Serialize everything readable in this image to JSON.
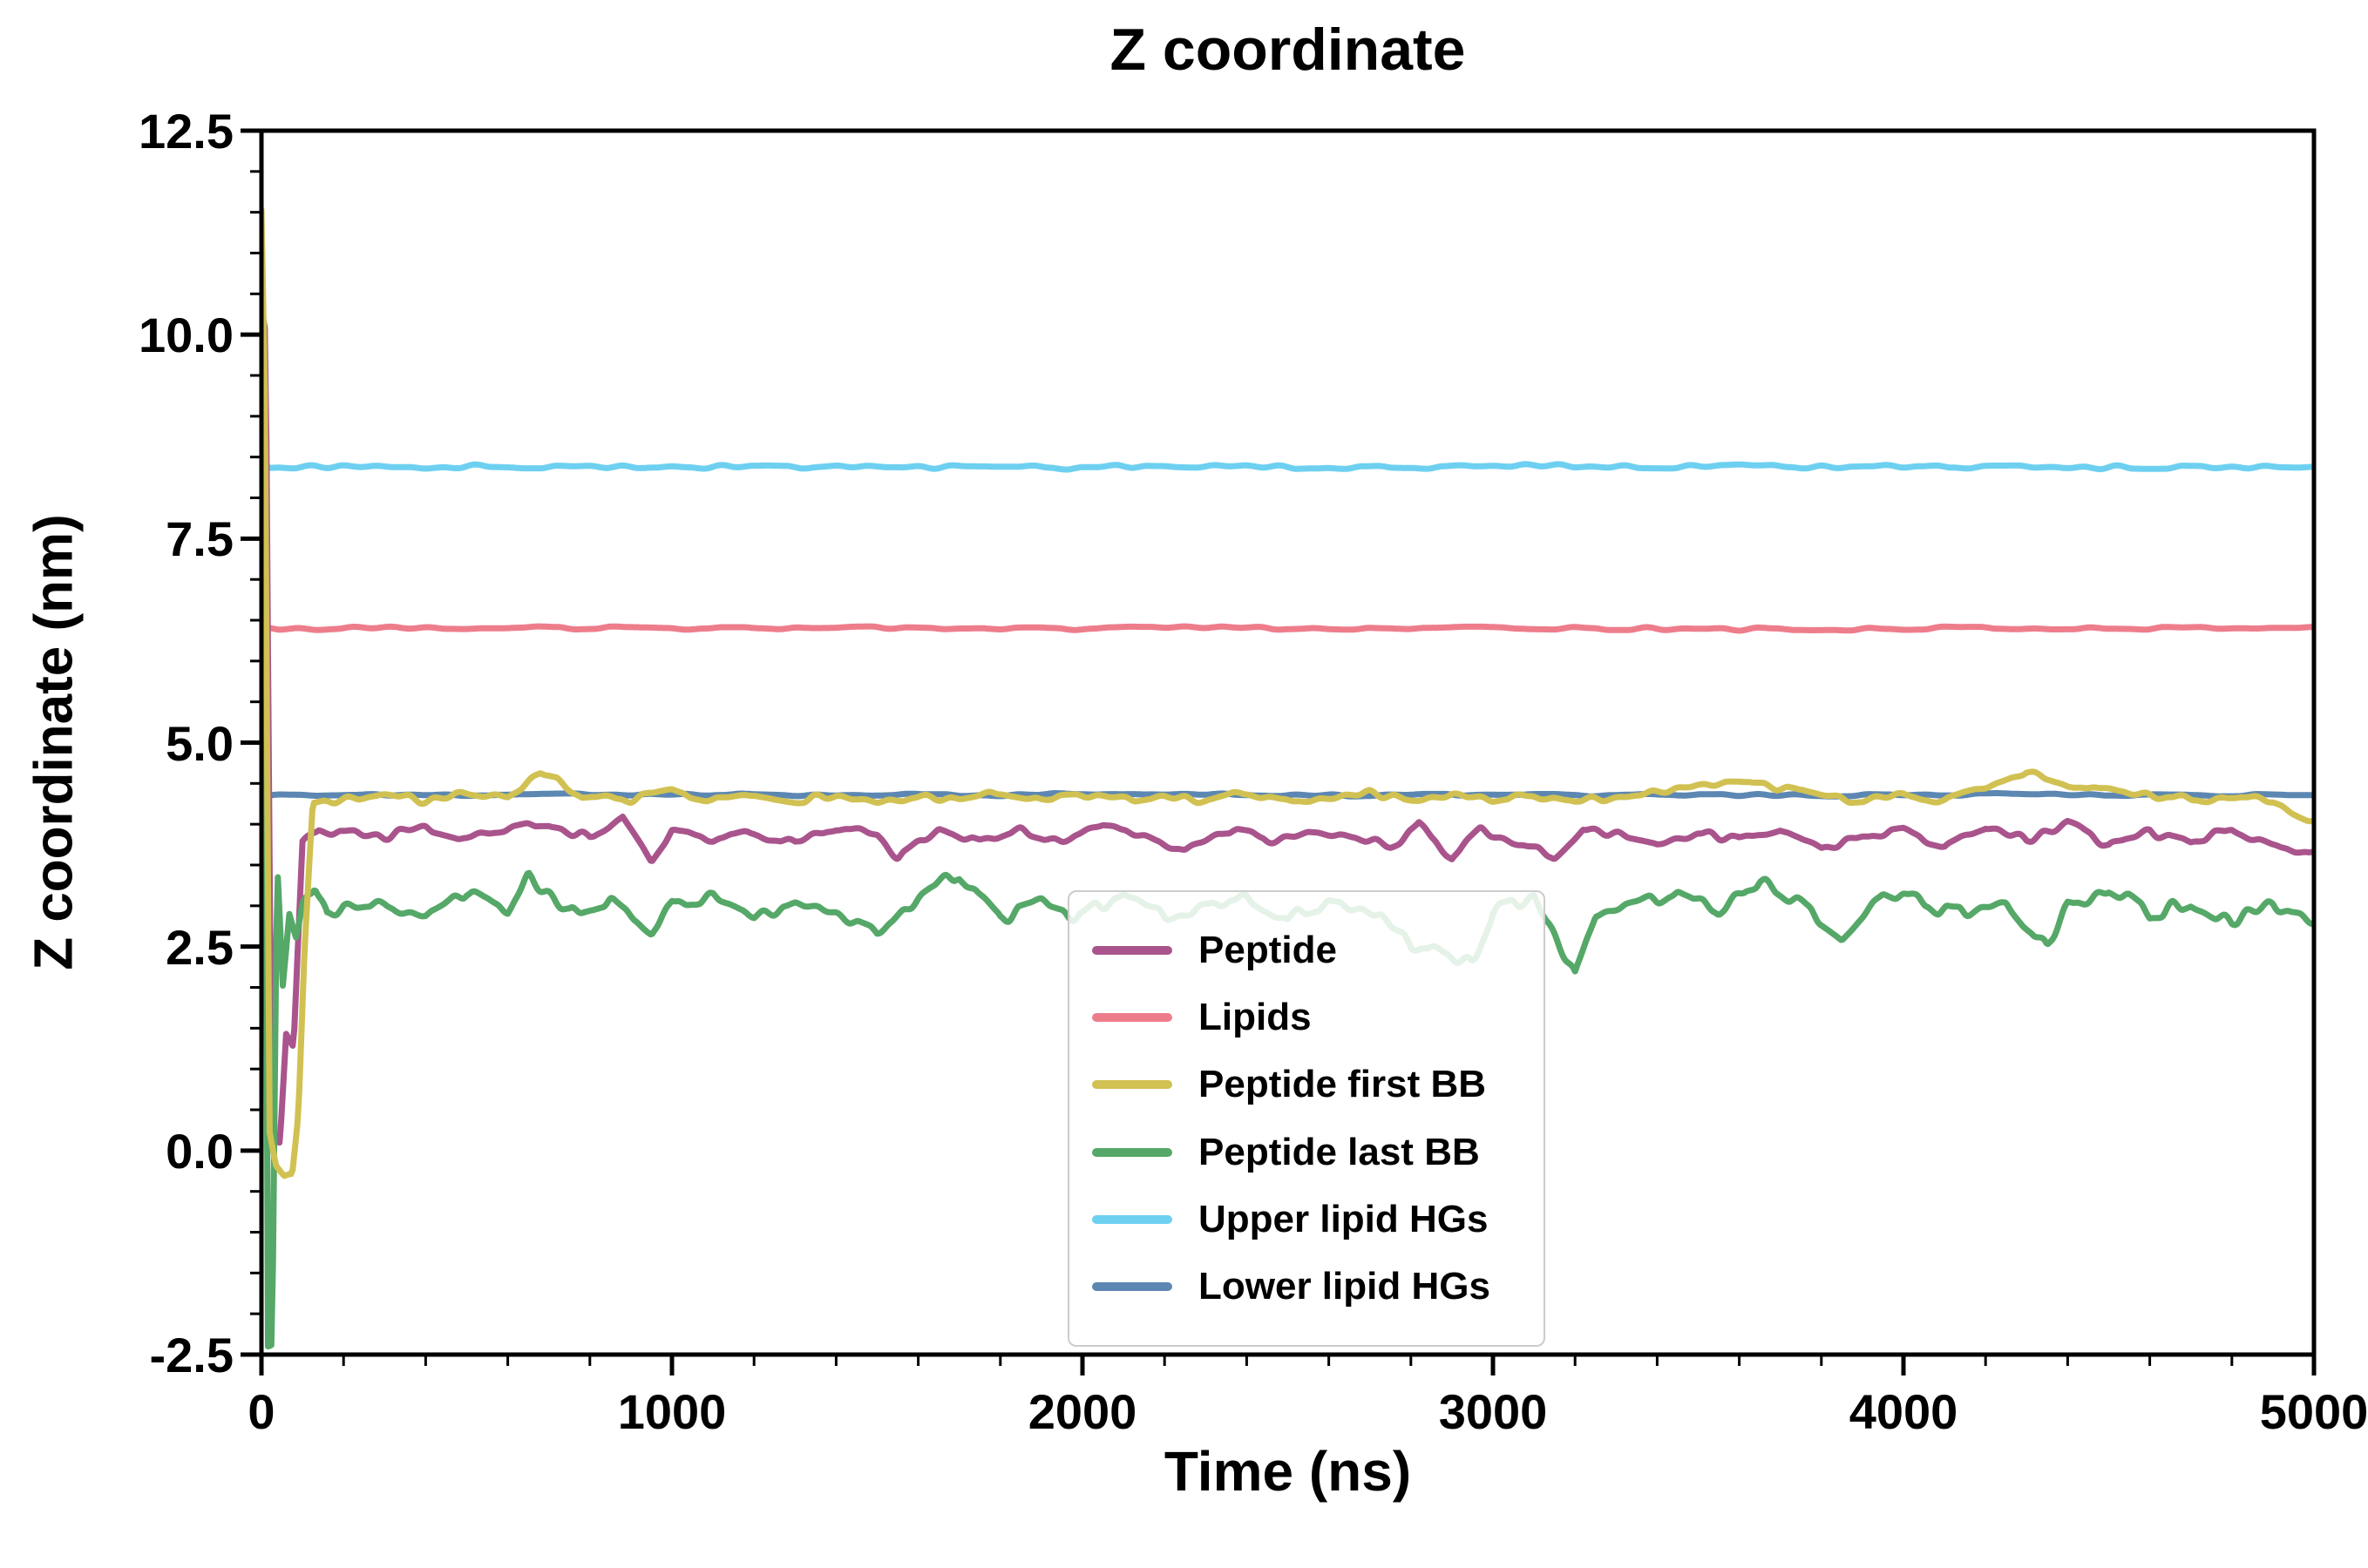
{
  "chart_data": {
    "type": "line",
    "title": "Z coordinate",
    "xlabel": "Time (ns)",
    "ylabel": "Z coordinate (nm)",
    "xlim": [
      0,
      5000
    ],
    "ylim": [
      -2.5,
      12.5
    ],
    "xticks": [
      0,
      1000,
      2000,
      3000,
      4000,
      5000
    ],
    "xtick_labels": [
      "0",
      "1000",
      "2000",
      "3000",
      "4000",
      "5000"
    ],
    "yticks": [
      -2.5,
      0.0,
      2.5,
      5.0,
      7.5,
      10.0,
      12.5
    ],
    "ytick_labels": [
      "-2.5",
      "0.0",
      "2.5",
      "5.0",
      "7.5",
      "10.0",
      "12.5"
    ],
    "x_minor_step": 200,
    "y_minor_step": 0.5,
    "grid": false,
    "legend_position": "inside lower center",
    "axis_color": "#000000",
    "background_color": "#ffffff",
    "draw_order": [
      5,
      4,
      1,
      0,
      3,
      2
    ],
    "series": [
      {
        "name": "Peptide",
        "color": "#a9548c",
        "line_width": 7,
        "noise_amp": 0.07,
        "noise_dx": 28,
        "seed": 11,
        "points": [
          [
            0,
            10.3
          ],
          [
            10,
            10.0
          ],
          [
            25,
            0.1
          ],
          [
            45,
            0.1
          ],
          [
            60,
            1.45
          ],
          [
            78,
            1.3
          ],
          [
            100,
            3.8
          ],
          [
            140,
            3.95
          ],
          [
            200,
            3.9
          ],
          [
            300,
            3.85
          ],
          [
            400,
            3.95
          ],
          [
            500,
            3.8
          ],
          [
            600,
            3.9
          ],
          [
            700,
            4.0
          ],
          [
            800,
            3.85
          ],
          [
            880,
            4.1
          ],
          [
            950,
            3.55
          ],
          [
            1000,
            3.9
          ],
          [
            1100,
            3.8
          ],
          [
            1200,
            3.9
          ],
          [
            1300,
            3.75
          ],
          [
            1400,
            3.95
          ],
          [
            1500,
            3.85
          ],
          [
            1550,
            3.6
          ],
          [
            1650,
            3.95
          ],
          [
            1750,
            3.8
          ],
          [
            1850,
            3.9
          ],
          [
            1950,
            3.8
          ],
          [
            2050,
            3.95
          ],
          [
            2150,
            3.85
          ],
          [
            2250,
            3.7
          ],
          [
            2350,
            3.9
          ],
          [
            2450,
            3.8
          ],
          [
            2550,
            3.95
          ],
          [
            2650,
            3.85
          ],
          [
            2750,
            3.75
          ],
          [
            2820,
            4.0
          ],
          [
            2900,
            3.6
          ],
          [
            2970,
            3.9
          ],
          [
            3050,
            3.8
          ],
          [
            3150,
            3.6
          ],
          [
            3220,
            3.95
          ],
          [
            3300,
            3.85
          ],
          [
            3400,
            3.75
          ],
          [
            3500,
            3.9
          ],
          [
            3600,
            3.8
          ],
          [
            3700,
            3.95
          ],
          [
            3800,
            3.7
          ],
          [
            3900,
            3.85
          ],
          [
            4000,
            3.9
          ],
          [
            4100,
            3.75
          ],
          [
            4200,
            3.95
          ],
          [
            4300,
            3.8
          ],
          [
            4400,
            4.0
          ],
          [
            4500,
            3.7
          ],
          [
            4600,
            3.9
          ],
          [
            4700,
            3.8
          ],
          [
            4800,
            3.95
          ],
          [
            4900,
            3.75
          ],
          [
            5000,
            3.65
          ]
        ]
      },
      {
        "name": "Lipids",
        "color": "#ee7d8b",
        "line_width": 7,
        "noise_amp": 0.028,
        "noise_dx": 45,
        "seed": 22,
        "points": [
          [
            0,
            6.4
          ],
          [
            5000,
            6.4
          ]
        ]
      },
      {
        "name": "Peptide first BB",
        "color": "#d0c152",
        "line_width": 7,
        "noise_amp": 0.06,
        "noise_dx": 30,
        "seed": 33,
        "points": [
          [
            0,
            11.5
          ],
          [
            8,
            9.3
          ],
          [
            20,
            0.2
          ],
          [
            35,
            -0.2
          ],
          [
            55,
            -0.3
          ],
          [
            75,
            -0.25
          ],
          [
            90,
            0.5
          ],
          [
            105,
            2.5
          ],
          [
            125,
            4.25
          ],
          [
            200,
            4.3
          ],
          [
            300,
            4.35
          ],
          [
            400,
            4.3
          ],
          [
            500,
            4.35
          ],
          [
            600,
            4.32
          ],
          [
            680,
            4.6
          ],
          [
            720,
            4.55
          ],
          [
            780,
            4.35
          ],
          [
            900,
            4.3
          ],
          [
            1000,
            4.4
          ],
          [
            1100,
            4.3
          ],
          [
            1200,
            4.35
          ],
          [
            1300,
            4.3
          ],
          [
            1400,
            4.35
          ],
          [
            1500,
            4.28
          ],
          [
            1600,
            4.32
          ],
          [
            1700,
            4.3
          ],
          [
            1800,
            4.38
          ],
          [
            1900,
            4.3
          ],
          [
            2000,
            4.35
          ],
          [
            2100,
            4.3
          ],
          [
            2200,
            4.36
          ],
          [
            2300,
            4.3
          ],
          [
            2400,
            4.34
          ],
          [
            2500,
            4.3
          ],
          [
            2600,
            4.32
          ],
          [
            2700,
            4.36
          ],
          [
            2800,
            4.3
          ],
          [
            2900,
            4.35
          ],
          [
            3000,
            4.3
          ],
          [
            3100,
            4.33
          ],
          [
            3200,
            4.3
          ],
          [
            3300,
            4.35
          ],
          [
            3400,
            4.4
          ],
          [
            3500,
            4.5
          ],
          [
            3600,
            4.55
          ],
          [
            3700,
            4.45
          ],
          [
            3800,
            4.35
          ],
          [
            3900,
            4.3
          ],
          [
            4000,
            4.35
          ],
          [
            4100,
            4.3
          ],
          [
            4200,
            4.45
          ],
          [
            4300,
            4.65
          ],
          [
            4400,
            4.5
          ],
          [
            4500,
            4.4
          ],
          [
            4600,
            4.35
          ],
          [
            4700,
            4.3
          ],
          [
            4800,
            4.35
          ],
          [
            4900,
            4.3
          ],
          [
            5000,
            4.05
          ]
        ]
      },
      {
        "name": "Peptide last BB",
        "color": "#55a868",
        "line_width": 7,
        "noise_amp": 0.12,
        "noise_dx": 26,
        "seed": 44,
        "points": [
          [
            0,
            9.2
          ],
          [
            10,
            5.0
          ],
          [
            16,
            -2.35
          ],
          [
            26,
            -2.3
          ],
          [
            38,
            3.6
          ],
          [
            52,
            2.0
          ],
          [
            68,
            2.9
          ],
          [
            85,
            2.6
          ],
          [
            100,
            3.0
          ],
          [
            130,
            3.3
          ],
          [
            160,
            2.9
          ],
          [
            200,
            3.0
          ],
          [
            300,
            3.0
          ],
          [
            400,
            2.9
          ],
          [
            500,
            3.15
          ],
          [
            600,
            3.0
          ],
          [
            650,
            3.4
          ],
          [
            750,
            2.9
          ],
          [
            850,
            3.1
          ],
          [
            950,
            2.65
          ],
          [
            1000,
            3.0
          ],
          [
            1100,
            3.1
          ],
          [
            1200,
            2.85
          ],
          [
            1300,
            3.0
          ],
          [
            1400,
            2.9
          ],
          [
            1500,
            2.7
          ],
          [
            1600,
            3.1
          ],
          [
            1700,
            3.35
          ],
          [
            1800,
            2.9
          ],
          [
            1900,
            3.0
          ],
          [
            2000,
            2.9
          ],
          [
            2100,
            3.1
          ],
          [
            2200,
            2.9
          ],
          [
            2300,
            3.0
          ],
          [
            2400,
            3.1
          ],
          [
            2500,
            2.8
          ],
          [
            2600,
            3.0
          ],
          [
            2700,
            2.9
          ],
          [
            2800,
            2.5
          ],
          [
            2850,
            2.45
          ],
          [
            2950,
            2.35
          ],
          [
            3000,
            2.9
          ],
          [
            3100,
            3.1
          ],
          [
            3150,
            2.6
          ],
          [
            3200,
            2.1
          ],
          [
            3250,
            2.9
          ],
          [
            3350,
            3.0
          ],
          [
            3450,
            3.2
          ],
          [
            3550,
            2.9
          ],
          [
            3650,
            3.3
          ],
          [
            3750,
            3.0
          ],
          [
            3850,
            2.6
          ],
          [
            3950,
            3.2
          ],
          [
            4050,
            3.0
          ],
          [
            4150,
            2.9
          ],
          [
            4250,
            3.1
          ],
          [
            4350,
            2.5
          ],
          [
            4400,
            3.0
          ],
          [
            4500,
            3.2
          ],
          [
            4600,
            2.9
          ],
          [
            4700,
            3.1
          ],
          [
            4800,
            2.8
          ],
          [
            4900,
            3.0
          ],
          [
            5000,
            2.8
          ]
        ]
      },
      {
        "name": "Upper lipid HGs",
        "color": "#6ed0f0",
        "line_width": 7,
        "noise_amp": 0.035,
        "noise_dx": 40,
        "seed": 55,
        "points": [
          [
            0,
            8.38
          ],
          [
            5000,
            8.38
          ]
        ]
      },
      {
        "name": "Lower lipid HGs",
        "color": "#5c87b2",
        "line_width": 7,
        "noise_amp": 0.022,
        "noise_dx": 45,
        "seed": 66,
        "points": [
          [
            0,
            4.36
          ],
          [
            5000,
            4.36
          ]
        ]
      }
    ]
  }
}
